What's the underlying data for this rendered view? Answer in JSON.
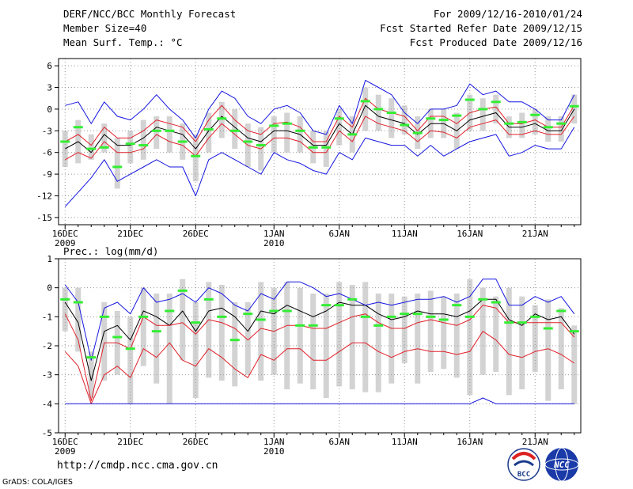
{
  "header": {
    "title": "DERF/NCC/BCC Monthly Forecast",
    "member_size": "Member Size=40",
    "variable": "Mean Surf. Temp.: °C",
    "period": "For 2009/12/16-2010/01/24",
    "started": "Fcst Started Refer Date 2009/12/15",
    "produced": "Fcst Produced Date 2009/12/16"
  },
  "footer": {
    "url": "http://cmdp.ncc.cma.gov.cn",
    "credit": "GrADS: COLA/IGES",
    "logo_left": "BCC",
    "logo_right": "NCC"
  },
  "colors": {
    "box": "#d3d3d3",
    "obs": "#33ee33",
    "ens_mean": "#000000",
    "inner_spread": "#e0202a",
    "outer_spread": "#1515e0",
    "grid": "#9a9a9a"
  },
  "chart_data": [
    {
      "type": "line",
      "title": "Mean Surf. Temp.: °C",
      "xlim": [
        1,
        40
      ],
      "ylim": [
        -16,
        7
      ],
      "yticks": [
        6,
        3,
        0,
        -3,
        -6,
        -9,
        -12,
        -15
      ],
      "xticks": [
        {
          "day": 1,
          "label": "16DEC",
          "sub": "2009"
        },
        {
          "day": 6,
          "label": "21DEC",
          "sub": ""
        },
        {
          "day": 11,
          "label": "26DEC",
          "sub": ""
        },
        {
          "day": 17,
          "label": "1JAN",
          "sub": "2010"
        },
        {
          "day": 22,
          "label": "6JAN",
          "sub": ""
        },
        {
          "day": 27,
          "label": "11JAN",
          "sub": ""
        },
        {
          "day": 32,
          "label": "16JAN",
          "sub": ""
        },
        {
          "day": 37,
          "label": "21JAN",
          "sub": ""
        }
      ],
      "series": [
        {
          "name": "ensemble mean",
          "values": [
            -5.5,
            -4.5,
            -6,
            -3.5,
            -5,
            -5,
            -4,
            -2.5,
            -3,
            -3.5,
            -5.5,
            -3,
            -1,
            -2.5,
            -4,
            -4.5,
            -3,
            -3,
            -3.5,
            -5,
            -5,
            -2,
            -3.5,
            0.5,
            -1,
            -1.5,
            -2,
            -3.5,
            -2,
            -2,
            -3,
            -1.5,
            -1,
            -0.5,
            -2.5,
            -2.5,
            -2,
            -3,
            -3,
            0
          ]
        },
        {
          "name": "inner upper",
          "values": [
            -4.5,
            -3.5,
            -5,
            -2.5,
            -4,
            -4,
            -3,
            -1.5,
            -2,
            -2.5,
            -4.5,
            -1.5,
            0.5,
            -1.5,
            -3,
            -3.5,
            -2,
            -1.8,
            -2.5,
            -4.5,
            -4.5,
            -1,
            -2.5,
            1.5,
            0,
            -0.5,
            -1,
            -3,
            -1,
            -1,
            -2,
            -0.5,
            0,
            0.3,
            -2,
            -2,
            -1.5,
            -2.5,
            -2.5,
            0.5
          ]
        },
        {
          "name": "inner lower",
          "values": [
            -7,
            -6,
            -6.8,
            -4.5,
            -6,
            -6,
            -5.5,
            -3.5,
            -4.5,
            -5,
            -6.5,
            -4,
            -2,
            -3.5,
            -5,
            -5.5,
            -4,
            -4,
            -4.5,
            -6,
            -6,
            -3,
            -4.5,
            -1,
            -2,
            -2.5,
            -3,
            -4.5,
            -3,
            -3.2,
            -4,
            -2.5,
            -2,
            -1.5,
            -3.5,
            -3.5,
            -3,
            -3.5,
            -3.5,
            -1
          ]
        },
        {
          "name": "outer upper",
          "values": [
            0.5,
            1,
            -2,
            1,
            -1,
            -1.5,
            0,
            2,
            0,
            -1.5,
            -4,
            0,
            2.5,
            1.5,
            -1,
            -2,
            0,
            0.5,
            -0.5,
            -3,
            -3.5,
            0.5,
            -2,
            4,
            3,
            2,
            -0.5,
            -2,
            0,
            0,
            0.5,
            3.5,
            2,
            2.5,
            1,
            1,
            0,
            -1.5,
            -1.5,
            2
          ]
        },
        {
          "name": "outer lower",
          "values": [
            -13.5,
            -11.5,
            -9.5,
            -7,
            -10,
            -9,
            -8,
            -7,
            -8,
            -8,
            -12,
            -7,
            -6,
            -7,
            -8,
            -9,
            -6,
            -7,
            -7.5,
            -8.5,
            -9,
            -6,
            -7,
            -4,
            -4.5,
            -5,
            -5,
            -6.5,
            -5,
            -6.5,
            -5.5,
            -4.5,
            -4,
            -3.5,
            -6.5,
            -6,
            -5,
            -5.5,
            -5.5,
            -2.5
          ]
        }
      ],
      "boxes": [
        [
          -8,
          -3
        ],
        [
          -7.5,
          -1.5
        ],
        [
          -7,
          -3.5
        ],
        [
          -6,
          -2
        ],
        [
          -11,
          -4
        ],
        [
          -7.5,
          -3
        ],
        [
          -7,
          -1.5
        ],
        [
          -5.5,
          -1
        ],
        [
          -6,
          -1
        ],
        [
          -7,
          -2
        ],
        [
          -10,
          -3.5
        ],
        [
          -6,
          -0.5
        ],
        [
          -4,
          1
        ],
        [
          -5.5,
          0
        ],
        [
          -8,
          -2
        ],
        [
          -8.5,
          -2.5
        ],
        [
          -6,
          -1
        ],
        [
          -6,
          -0.5
        ],
        [
          -6,
          -1
        ],
        [
          -7.5,
          -3
        ],
        [
          -8,
          -3
        ],
        [
          -5,
          0
        ],
        [
          -6,
          -1
        ],
        [
          -3,
          3
        ],
        [
          -3,
          2
        ],
        [
          -4,
          1.5
        ],
        [
          -3.5,
          0.5
        ],
        [
          -5.5,
          -1
        ],
        [
          -4,
          0
        ],
        [
          -4,
          0
        ],
        [
          -5.5,
          -0.5
        ],
        [
          -3,
          2
        ],
        [
          -3,
          1.5
        ],
        [
          -2,
          2
        ],
        [
          -4,
          -1
        ],
        [
          -4,
          -0.5
        ],
        [
          -3.5,
          0
        ],
        [
          -4.5,
          -1
        ],
        [
          -4.5,
          -1
        ],
        [
          -2,
          2
        ]
      ],
      "obs": [
        -4.5,
        -2.5,
        -5.5,
        -5.3,
        -8,
        -4.8,
        -5,
        -3,
        -3,
        -4.5,
        -6.5,
        -2.8,
        -1.3,
        -3,
        -4.5,
        -5,
        -2.3,
        -2,
        -3,
        -5.3,
        -5.3,
        -1.3,
        -3.5,
        1.1,
        0,
        -0.5,
        -2.2,
        -3.3,
        -1.3,
        -1.5,
        -0.9,
        1.3,
        0,
        1,
        -2,
        -1.8,
        -0.8,
        -2.5,
        -2,
        0.4
      ]
    },
    {
      "type": "line",
      "title": "Prec.: log(mm/d)",
      "xlim": [
        1,
        40
      ],
      "ylim": [
        -5,
        1
      ],
      "yticks": [
        1,
        0,
        -1,
        -2,
        -3,
        -4,
        -5
      ],
      "xticks": [
        {
          "day": 1,
          "label": "16DEC",
          "sub": "2009"
        },
        {
          "day": 6,
          "label": "21DEC",
          "sub": ""
        },
        {
          "day": 11,
          "label": "26DEC",
          "sub": ""
        },
        {
          "day": 17,
          "label": "1JAN",
          "sub": "2010"
        },
        {
          "day": 22,
          "label": "6JAN",
          "sub": ""
        },
        {
          "day": 27,
          "label": "11JAN",
          "sub": ""
        },
        {
          "day": 32,
          "label": "16JAN",
          "sub": ""
        },
        {
          "day": 37,
          "label": "21JAN",
          "sub": ""
        }
      ],
      "series": [
        {
          "name": "ensemble mean",
          "values": [
            -0.5,
            -1.2,
            -3.2,
            -1.5,
            -1.3,
            -1.8,
            -0.8,
            -1,
            -1.3,
            -0.8,
            -1.5,
            -0.8,
            -0.7,
            -1,
            -1.5,
            -0.8,
            -0.9,
            -0.6,
            -0.8,
            -1,
            -0.8,
            -0.5,
            -0.6,
            -0.6,
            -0.9,
            -1.1,
            -1,
            -0.8,
            -0.9,
            -0.9,
            -1,
            -0.8,
            -0.4,
            -0.4,
            -1.1,
            -1.3,
            -0.9,
            -1.1,
            -1,
            -1.6
          ]
        },
        {
          "name": "inner upper",
          "values": [
            -0.9,
            -1.8,
            -3.9,
            -1.9,
            -1.9,
            -2.1,
            -1,
            -1.3,
            -1.3,
            -1.2,
            -1.6,
            -1.1,
            -1.2,
            -1.4,
            -1.8,
            -1.4,
            -1.5,
            -1.3,
            -1.3,
            -1.4,
            -1.4,
            -1.2,
            -1,
            -0.9,
            -1.2,
            -1.4,
            -1.4,
            -1.2,
            -1.1,
            -1.2,
            -1.3,
            -1.1,
            -0.6,
            -0.7,
            -1.2,
            -1.2,
            -1.2,
            -1.2,
            -1.2,
            -1.7
          ]
        },
        {
          "name": "inner lower",
          "values": [
            -2.2,
            -2.7,
            -4,
            -3,
            -2.7,
            -3.1,
            -2.1,
            -2.4,
            -1.9,
            -2.5,
            -2.7,
            -2.1,
            -2.4,
            -2.8,
            -3.1,
            -2.3,
            -2.5,
            -2.1,
            -2.1,
            -2.5,
            -2.5,
            -2.2,
            -1.9,
            -1.9,
            -2.2,
            -2.4,
            -2.2,
            -2.1,
            -2.2,
            -2.2,
            -2.3,
            -2.2,
            -1.5,
            -1.8,
            -2.3,
            -2.4,
            -2.2,
            -2.1,
            -2.3,
            -2.6
          ]
        },
        {
          "name": "outer upper",
          "values": [
            0.1,
            -0.5,
            -2.5,
            -0.7,
            -0.5,
            -0.9,
            0,
            -0.5,
            -0.4,
            -0.2,
            -0.5,
            0,
            -0.2,
            -0.6,
            -0.8,
            -0.2,
            -0.4,
            0.2,
            0.2,
            0,
            -0.3,
            -0.2,
            -0.4,
            -0.6,
            -0.5,
            -0.6,
            -0.5,
            -0.4,
            -0.4,
            -0.3,
            -0.5,
            -0.3,
            0.3,
            0.3,
            -0.6,
            -0.6,
            -0.3,
            -0.5,
            -0.3,
            -0.9
          ]
        },
        {
          "name": "outer lower",
          "values": [
            -4,
            -4,
            -4,
            -4,
            -4,
            -4,
            -4,
            -4,
            -4,
            -4,
            -4,
            -4,
            -4,
            -4,
            -4,
            -4,
            -4,
            -4,
            -4,
            -4,
            -4,
            -4,
            -4,
            -4,
            -4,
            -4,
            -4,
            -4,
            -4,
            -4,
            -4,
            -4,
            -3.8,
            -4,
            -4,
            -4,
            -4,
            -4,
            -4,
            -4
          ]
        }
      ],
      "boxes": [
        [
          -1.5,
          0
        ],
        [
          -2.2,
          0
        ],
        [
          -3.8,
          -2.2
        ],
        [
          -3.2,
          -0.5
        ],
        [
          -3,
          -0.8
        ],
        [
          -4,
          -1
        ],
        [
          -2.7,
          0
        ],
        [
          -3.3,
          -0.2
        ],
        [
          -4,
          -0.2
        ],
        [
          -2.5,
          0.3
        ],
        [
          -3.8,
          -0.5
        ],
        [
          -3.1,
          0.2
        ],
        [
          -3.2,
          0.1
        ],
        [
          -3.4,
          -0.5
        ],
        [
          -3,
          -0.5
        ],
        [
          -3.2,
          0.2
        ],
        [
          -3,
          0
        ],
        [
          -3.5,
          0.2
        ],
        [
          -3.3,
          0
        ],
        [
          -3.5,
          -0.2
        ],
        [
          -3.8,
          -0.2
        ],
        [
          -3.4,
          0.2
        ],
        [
          -3.5,
          0.1
        ],
        [
          -3.6,
          0.2
        ],
        [
          -3.6,
          -0.2
        ],
        [
          -3.3,
          -0.2
        ],
        [
          -2.6,
          -0.3
        ],
        [
          -3.3,
          -0.2
        ],
        [
          -2.9,
          -0.1
        ],
        [
          -2.8,
          -0.3
        ],
        [
          -3.1,
          -0.2
        ],
        [
          -3.7,
          0.3
        ],
        [
          -3,
          0
        ],
        [
          -2.9,
          -0.3
        ],
        [
          -3.7,
          0
        ],
        [
          -3.5,
          -0.3
        ],
        [
          -2.9,
          -0.6
        ],
        [
          -3.9,
          -0.4
        ],
        [
          -3.5,
          -0.7
        ],
        [
          -4,
          -1.3
        ]
      ],
      "obs": [
        -0.4,
        -0.5,
        -2.4,
        -1,
        -1.7,
        -2.1,
        -1,
        -1.5,
        -0.8,
        -0.1,
        -1.2,
        -0.4,
        -1,
        -1.8,
        -0.9,
        -1.1,
        -0.8,
        -0.8,
        -1.3,
        -1.3,
        -0.6,
        -0.6,
        -0.4,
        -1,
        -1.3,
        -1,
        -0.9,
        -0.9,
        -1,
        -1.1,
        -0.6,
        -1,
        -0.4,
        -0.5,
        -1.2,
        -1.2,
        -1,
        -1.4,
        -0.8,
        -1.5
      ]
    }
  ]
}
